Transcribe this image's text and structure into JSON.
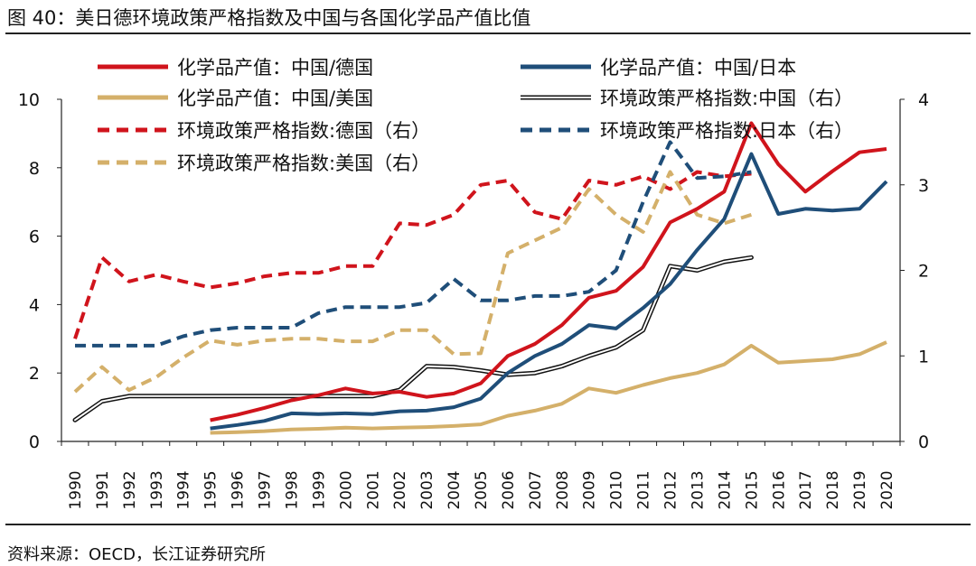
{
  "figure": {
    "title": "图 40：美日德环境政策严格指数及中国与各国化学品产值比值",
    "source": "资料来源：OECD，长江证券研究所"
  },
  "chart_data": {
    "type": "line",
    "x": [
      1990,
      1991,
      1992,
      1993,
      1994,
      1995,
      1996,
      1997,
      1998,
      1999,
      2000,
      2001,
      2002,
      2003,
      2004,
      2005,
      2006,
      2007,
      2008,
      2009,
      2010,
      2011,
      2012,
      2013,
      2014,
      2015,
      2016,
      2017,
      2018,
      2019,
      2020
    ],
    "y_left": {
      "ylim": [
        0,
        10
      ],
      "ticks": [
        0,
        2,
        4,
        6,
        8,
        10
      ]
    },
    "y_right": {
      "ylim": [
        0,
        4
      ],
      "ticks": [
        0,
        1,
        2,
        3,
        4
      ]
    },
    "legend_placement": "top",
    "series": [
      {
        "name": "化学品产值：中国/德国",
        "axis": "left",
        "color": "#d0141c",
        "dash": "solid",
        "values": [
          null,
          null,
          null,
          null,
          null,
          0.62,
          0.78,
          0.98,
          1.2,
          1.35,
          1.55,
          1.4,
          1.45,
          1.3,
          1.4,
          1.7,
          2.5,
          2.85,
          3.4,
          4.2,
          4.4,
          5.1,
          6.4,
          6.8,
          7.3,
          9.3,
          8.1,
          7.3,
          7.9,
          8.45,
          8.55
        ]
      },
      {
        "name": "化学品产值：中国/日本",
        "axis": "left",
        "color": "#1f4e79",
        "dash": "solid",
        "values": [
          null,
          null,
          null,
          null,
          null,
          0.38,
          0.48,
          0.6,
          0.82,
          0.8,
          0.82,
          0.8,
          0.88,
          0.9,
          1.0,
          1.25,
          2.0,
          2.5,
          2.85,
          3.4,
          3.3,
          3.9,
          4.6,
          5.6,
          6.5,
          8.4,
          6.65,
          6.8,
          6.75,
          6.8,
          7.6
        ]
      },
      {
        "name": "化学品产值：中国/美国",
        "axis": "left",
        "color": "#d4b06a",
        "dash": "solid",
        "values": [
          null,
          null,
          null,
          null,
          null,
          0.25,
          0.27,
          0.3,
          0.35,
          0.37,
          0.4,
          0.38,
          0.4,
          0.42,
          0.45,
          0.5,
          0.75,
          0.9,
          1.1,
          1.55,
          1.42,
          1.65,
          1.85,
          2.0,
          2.25,
          2.8,
          2.3,
          2.35,
          2.4,
          2.55,
          2.9
        ]
      },
      {
        "name": "环境政策严格指数:中国（右）",
        "axis": "right",
        "color": "#111111",
        "dash": "double",
        "values": [
          0.25,
          0.47,
          0.53,
          0.53,
          0.53,
          0.53,
          0.53,
          0.53,
          0.53,
          0.53,
          0.53,
          0.53,
          0.6,
          0.88,
          0.87,
          0.83,
          0.78,
          0.8,
          0.88,
          1.0,
          1.1,
          1.3,
          2.05,
          2.0,
          2.1,
          2.15,
          null,
          null,
          null,
          null,
          null
        ]
      },
      {
        "name": "环境政策严格指数:德国（右）",
        "axis": "right",
        "color": "#d0141c",
        "dash": "dashed",
        "values": [
          1.2,
          2.15,
          1.87,
          1.95,
          1.87,
          1.8,
          1.85,
          1.93,
          1.97,
          1.97,
          2.05,
          2.05,
          2.55,
          2.53,
          2.65,
          3.0,
          3.05,
          2.68,
          2.6,
          3.05,
          3.0,
          3.1,
          2.95,
          3.15,
          3.1,
          3.13,
          null,
          null,
          null,
          null,
          null
        ]
      },
      {
        "name": "环境政策严格指数:日本（右）",
        "axis": "right",
        "color": "#1f4e79",
        "dash": "dashed",
        "values": [
          1.12,
          1.12,
          1.12,
          1.12,
          1.23,
          1.3,
          1.33,
          1.33,
          1.33,
          1.5,
          1.57,
          1.57,
          1.57,
          1.62,
          1.9,
          1.65,
          1.65,
          1.7,
          1.7,
          1.75,
          2.0,
          2.8,
          3.5,
          3.08,
          3.1,
          3.15,
          null,
          null,
          null,
          null,
          null
        ]
      },
      {
        "name": "环境政策严格指数:美国（右）",
        "axis": "right",
        "color": "#d4b06a",
        "dash": "dashed",
        "values": [
          0.58,
          0.87,
          0.6,
          0.75,
          0.98,
          1.18,
          1.13,
          1.18,
          1.2,
          1.2,
          1.17,
          1.17,
          1.3,
          1.3,
          1.02,
          1.03,
          2.2,
          2.35,
          2.5,
          2.95,
          2.65,
          2.45,
          3.15,
          2.65,
          2.55,
          2.65,
          null,
          null,
          null,
          null,
          null
        ]
      }
    ]
  }
}
